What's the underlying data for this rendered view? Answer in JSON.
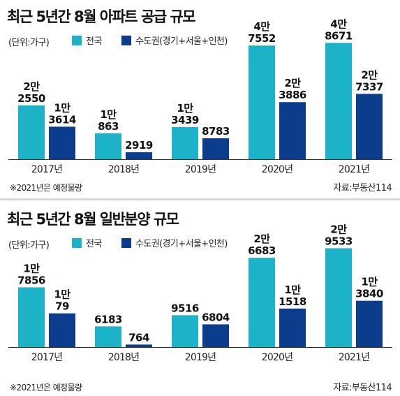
{
  "colors": {
    "nationwide": "#1cb3c8",
    "capital": "#0b3d8c",
    "axis": "#333333"
  },
  "chart_data": [
    {
      "type": "bar",
      "title": "최근 5년간 8월 아파트 공급 규모",
      "unit_label": "(단위:가구)",
      "categories": [
        "2017년",
        "2018년",
        "2019년",
        "2020년",
        "2021년"
      ],
      "series": [
        {
          "name": "전국",
          "values": [
            22550,
            10863,
            13439,
            47552,
            48671
          ],
          "labels": [
            [
              "2만",
              "2550"
            ],
            [
              "1만",
              "863"
            ],
            [
              "1만",
              "3439"
            ],
            [
              "4만",
              "7552"
            ],
            [
              "4만",
              "8671"
            ]
          ]
        },
        {
          "name": "수도권(경기+서울+인천)",
          "values": [
            13614,
            2919,
            8783,
            23886,
            27337
          ],
          "labels": [
            [
              "1만",
              "3614"
            ],
            [
              "2919"
            ],
            [
              "8783"
            ],
            [
              "2만",
              "3886"
            ],
            [
              "2만",
              "7337"
            ]
          ]
        }
      ],
      "ylim": [
        0,
        52000
      ],
      "note": "※2021년은 예정물량",
      "source": "자료:부동산114"
    },
    {
      "type": "bar",
      "title": "최근 5년간 8월 일반분양 규모",
      "unit_label": "(단위:가구)",
      "categories": [
        "2017년",
        "2018년",
        "2019년",
        "2020년",
        "2021년"
      ],
      "series": [
        {
          "name": "전국",
          "values": [
            17856,
            6183,
            9516,
            26683,
            29533
          ],
          "labels": [
            [
              "1만",
              "7856"
            ],
            [
              "6183"
            ],
            [
              "9516"
            ],
            [
              "2만",
              "6683"
            ],
            [
              "2만",
              "9533"
            ]
          ]
        },
        {
          "name": "수도권(경기+서울+인천)",
          "values": [
            10079,
            764,
            6804,
            11518,
            13840
          ],
          "labels": [
            [
              "1만",
              "79"
            ],
            [
              "764"
            ],
            [
              "6804"
            ],
            [
              "1만",
              "1518"
            ],
            [
              "1만",
              "3840"
            ]
          ]
        }
      ],
      "ylim": [
        0,
        31500
      ],
      "note": "※2021년은 예정물량",
      "source": "자료:부동산114"
    }
  ]
}
